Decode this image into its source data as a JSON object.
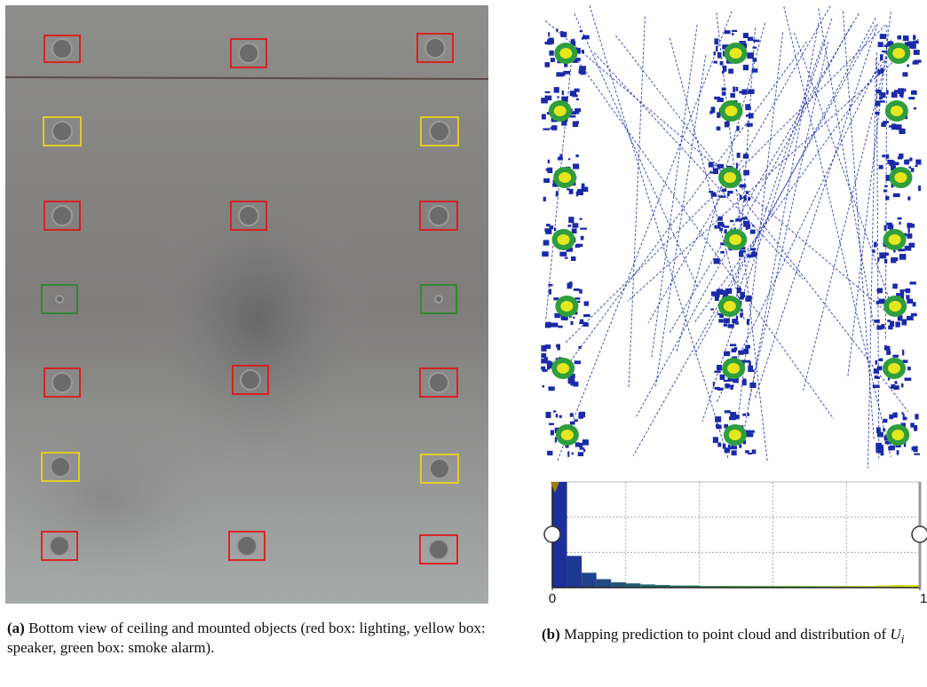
{
  "captions": [
    {
      "label": "(a)",
      "text": "Bottom view of  ceiling and mounted objects (red box: lighting, yellow box: speaker, green box: smoke alarm)."
    },
    {
      "label": "(b)",
      "text": "Mapping prediction to point cloud and distribution of",
      "math": "U",
      "subscript": "i"
    }
  ],
  "chart_data": {
    "type": "histogram",
    "bins": [
      0,
      0.04,
      0.08,
      0.12,
      0.16,
      0.2,
      0.24,
      0.28,
      0.32,
      0.36,
      0.4,
      0.44,
      0.48,
      0.52,
      0.56,
      0.6,
      0.64,
      0.68,
      0.72,
      0.76,
      0.8,
      0.84,
      0.88,
      0.92,
      0.96,
      1
    ],
    "values": [
      100,
      30,
      14,
      8,
      5,
      4,
      3,
      2.5,
      2,
      2,
      1.5,
      1.5,
      1.5,
      1.5,
      1.5,
      1.5,
      1.5,
      1.5,
      1.5,
      1.5,
      1.5,
      1.5,
      2,
      2.5,
      2.5
    ],
    "colorscale": [
      "#1c2a9e",
      "#2f9e3c",
      "#e6e61e"
    ],
    "xlim": [
      0,
      1
    ],
    "ylim": [
      0,
      100
    ],
    "xticks": [
      0,
      1
    ],
    "grid": true
  }
}
